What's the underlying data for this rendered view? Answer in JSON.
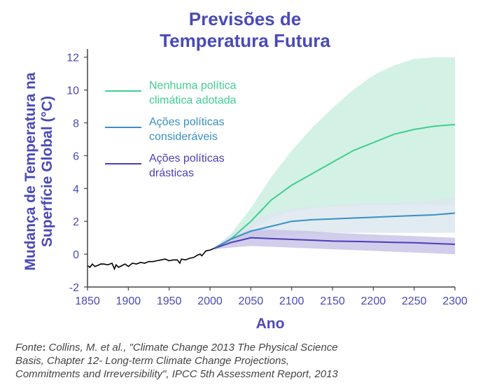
{
  "chart_data": {
    "type": "line",
    "title": [
      "Previsões de",
      "Temperatura Futura"
    ],
    "xlabel": "Ano",
    "ylabel": [
      "Mudança de Temperatura na",
      "Superfície Global (°C)"
    ],
    "xlim": [
      1850,
      2300
    ],
    "ylim": [
      -2,
      12.5
    ],
    "xticks": [
      1850,
      1900,
      1950,
      2000,
      2050,
      2100,
      2150,
      2200,
      2250,
      2300
    ],
    "yticks": [
      -2,
      0,
      2,
      4,
      6,
      8,
      10,
      12
    ],
    "grid": false,
    "legend_position": "top-left",
    "historical": {
      "color": "#000000",
      "x": [
        1850,
        1853,
        1856,
        1859,
        1862,
        1866,
        1870,
        1875,
        1880,
        1883,
        1885,
        1888,
        1892,
        1896,
        1900,
        1905,
        1910,
        1915,
        1920,
        1925,
        1930,
        1935,
        1940,
        1945,
        1950,
        1955,
        1960,
        1963,
        1965,
        1970,
        1975,
        1980,
        1985,
        1988,
        1990,
        1995,
        2000,
        2005
      ],
      "y": [
        -0.7,
        -0.8,
        -0.6,
        -0.75,
        -0.7,
        -0.6,
        -0.6,
        -0.65,
        -0.55,
        -0.9,
        -0.65,
        -0.8,
        -0.7,
        -0.6,
        -0.75,
        -0.55,
        -0.6,
        -0.5,
        -0.55,
        -0.45,
        -0.45,
        -0.4,
        -0.35,
        -0.3,
        -0.4,
        -0.35,
        -0.35,
        -0.55,
        -0.3,
        -0.35,
        -0.25,
        -0.2,
        -0.05,
        0.0,
        -0.1,
        0.2,
        0.25,
        0.35
      ]
    },
    "series": [
      {
        "name": "Nenhuma política climática adotada",
        "color": "#3fcf8e",
        "band_color": "#cdeee0",
        "x": [
          2005,
          2025,
          2050,
          2075,
          2100,
          2125,
          2150,
          2175,
          2200,
          2225,
          2250,
          2275,
          2300
        ],
        "values": [
          0.35,
          0.9,
          2.0,
          3.3,
          4.2,
          4.9,
          5.6,
          6.3,
          6.8,
          7.3,
          7.6,
          7.8,
          7.9
        ],
        "low": [
          0.3,
          0.8,
          1.5,
          2.2,
          2.6,
          2.8,
          2.9,
          2.95,
          3.0,
          3.0,
          3.0,
          3.0,
          3.0
        ],
        "high": [
          0.4,
          1.2,
          2.8,
          4.7,
          6.3,
          7.7,
          8.9,
          10.0,
          10.9,
          11.5,
          11.9,
          12.0,
          12.0
        ]
      },
      {
        "name": "Ações políticas consideráveis",
        "color": "#3a8fc4",
        "band_color": "#dce7ee",
        "x": [
          2005,
          2025,
          2050,
          2075,
          2100,
          2125,
          2150,
          2175,
          2200,
          2225,
          2250,
          2275,
          2300
        ],
        "values": [
          0.35,
          0.9,
          1.4,
          1.7,
          2.0,
          2.1,
          2.15,
          2.2,
          2.25,
          2.3,
          2.35,
          2.4,
          2.5
        ],
        "low": [
          0.3,
          0.6,
          0.9,
          1.1,
          1.2,
          1.25,
          1.3,
          1.3,
          1.3,
          1.3,
          1.3,
          1.3,
          1.3
        ],
        "high": [
          0.4,
          1.2,
          2.0,
          2.5,
          2.8,
          2.9,
          3.0,
          3.05,
          3.1,
          3.15,
          3.2,
          3.3,
          3.5
        ]
      },
      {
        "name": "Ações políticas drásticas",
        "color": "#4a3fb8",
        "band_color": "#c9c4e8",
        "x": [
          2005,
          2025,
          2050,
          2075,
          2100,
          2125,
          2150,
          2175,
          2200,
          2225,
          2250,
          2275,
          2300
        ],
        "values": [
          0.35,
          0.7,
          1.0,
          0.95,
          0.9,
          0.85,
          0.8,
          0.78,
          0.75,
          0.72,
          0.7,
          0.65,
          0.6
        ],
        "low": [
          0.3,
          0.4,
          0.5,
          0.45,
          0.4,
          0.35,
          0.3,
          0.25,
          0.2,
          0.15,
          0.1,
          0.05,
          0.0
        ],
        "high": [
          0.4,
          1.0,
          1.5,
          1.5,
          1.45,
          1.4,
          1.3,
          1.25,
          1.2,
          1.15,
          1.1,
          1.05,
          1.0
        ]
      }
    ],
    "legend_lines": [
      [
        "Nenhuma política",
        "climática adotada"
      ],
      [
        "Ações políticas",
        "consideráveis"
      ],
      [
        "Ações políticas",
        "drásticas"
      ]
    ]
  },
  "source": {
    "prefix": "Fonte",
    "colon": ":",
    "lines": [
      " Collins, M. et al., \"Climate Change 2013  The Physical Science",
      "Basis, Chapter 12- Long-term Climate Change  Projections,",
      "Commitments and Irreversibility\", IPCC 5th Assessment Report, 2013"
    ]
  }
}
